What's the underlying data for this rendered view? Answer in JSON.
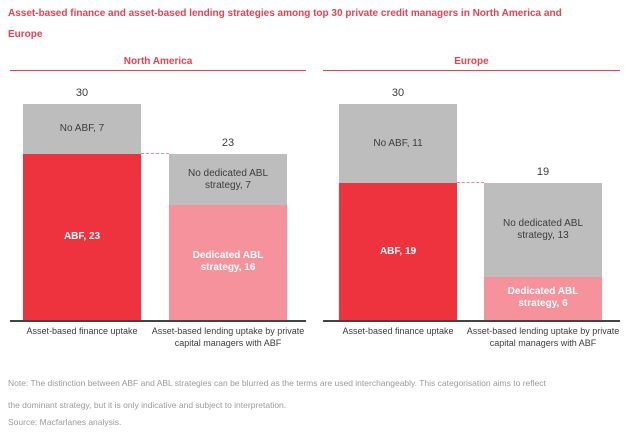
{
  "title": "Asset-based finance and asset-based lending strategies among top 30 private credit managers in North America and Europe",
  "note": [
    "Note: The distinction between ABF and ABL strategies can be blurred as the terms are used interchangeably. This categorisation aims to reflect",
    "the dominant strategy, but it is only indicative and subject to interpretation."
  ],
  "source": "Source: Macfarlanes analysis.",
  "colors": {
    "accent_red": "#e94153",
    "bar_red": "#ee333f",
    "bar_pink": "#f6929b",
    "bar_gray": "#bdbdbd",
    "connector_pink": "#ef8691",
    "text_dark": "#3d3d3d",
    "axis_dark": "#444444",
    "note_gray": "#9b9b9b"
  },
  "chart_data": [
    {
      "type": "bar",
      "stacked": true,
      "region": "North America",
      "ylim": [
        0,
        30
      ],
      "grid": false,
      "connector_value": 23,
      "bars": [
        {
          "category": "Asset-based finance uptake",
          "total": 30,
          "segments": [
            {
              "name": "ABF",
              "label": "ABF, 23",
              "value": 23,
              "color": "red"
            },
            {
              "name": "No ABF",
              "label": "No ABF, 7",
              "value": 7,
              "color": "gray"
            }
          ]
        },
        {
          "category": "Asset-based lending uptake by private capital managers with ABF",
          "total": 23,
          "segments": [
            {
              "name": "Dedicated ABL strategy",
              "label": "Dedicated ABL strategy, 16",
              "value": 16,
              "color": "pink"
            },
            {
              "name": "No dedicated ABL strategy",
              "label": "No dedicated ABL strategy, 7",
              "value": 7,
              "color": "gray"
            }
          ]
        }
      ]
    },
    {
      "type": "bar",
      "stacked": true,
      "region": "Europe",
      "ylim": [
        0,
        30
      ],
      "grid": false,
      "connector_value": 19,
      "bars": [
        {
          "category": "Asset-based finance uptake",
          "total": 30,
          "segments": [
            {
              "name": "ABF",
              "label": "ABF, 19",
              "value": 19,
              "color": "red"
            },
            {
              "name": "No ABF",
              "label": "No ABF, 11",
              "value": 11,
              "color": "gray"
            }
          ]
        },
        {
          "category": "Asset-based lending uptake by private capital managers with ABF",
          "total": 19,
          "segments": [
            {
              "name": "Dedicated ABL strategy",
              "label": "Dedicated ABL strategy, 6",
              "value": 6,
              "color": "pink"
            },
            {
              "name": "No dedicated ABL strategy",
              "label": "No dedicated ABL strategy, 13",
              "value": 13,
              "color": "gray"
            }
          ]
        }
      ]
    }
  ]
}
